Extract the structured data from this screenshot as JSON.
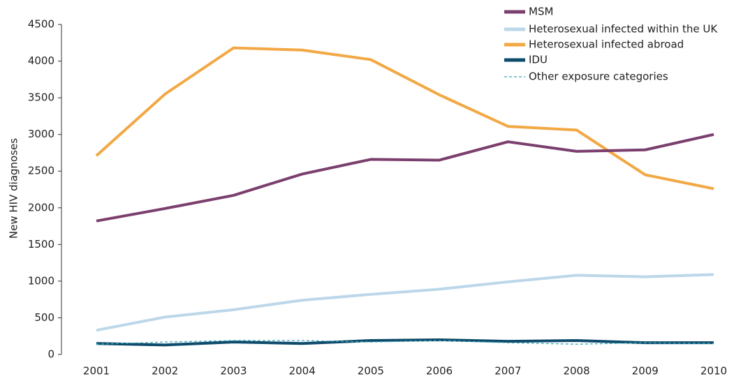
{
  "chart_data": {
    "type": "line",
    "ylabel": "New HIV diagnoses",
    "categories": [
      "2001",
      "2002",
      "2003",
      "2004",
      "2005",
      "2006",
      "2007",
      "2008",
      "2009",
      "2010"
    ],
    "series": [
      {
        "name": "MSM",
        "color": "#7b3f6e",
        "values": [
          1820,
          1990,
          2170,
          2460,
          2660,
          2650,
          2900,
          2770,
          2790,
          3000
        ]
      },
      {
        "name": "Heterosexual infected within the UK",
        "color": "#bcd7e9",
        "values": [
          330,
          510,
          610,
          740,
          820,
          890,
          990,
          1080,
          1060,
          1090
        ]
      },
      {
        "name": "Heterosexual infected abroad",
        "color": "#f2a844",
        "values": [
          2710,
          3550,
          4180,
          4150,
          4020,
          3540,
          3110,
          3060,
          2450,
          2260
        ]
      },
      {
        "name": "IDU",
        "color": "#0e4a6b",
        "values": [
          150,
          130,
          170,
          150,
          190,
          200,
          180,
          190,
          160,
          160
        ]
      },
      {
        "name": "Other exposure categories",
        "color": "#3aa8b8",
        "dashed": true,
        "values": [
          140,
          170,
          190,
          190,
          170,
          190,
          160,
          140,
          160,
          150
        ]
      }
    ],
    "ylim": [
      0,
      4500
    ],
    "yticks": [
      0,
      500,
      1000,
      1500,
      2000,
      2500,
      3000,
      3500,
      4000,
      4500
    ],
    "grid": false,
    "legend": "top-right"
  }
}
